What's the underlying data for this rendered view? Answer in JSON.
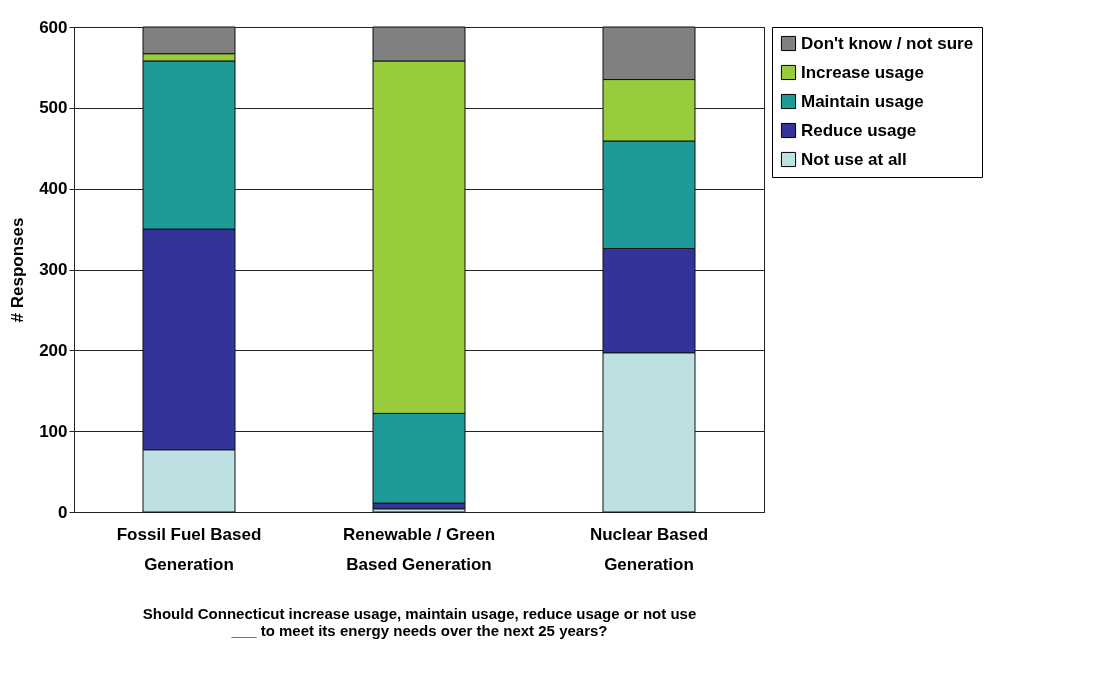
{
  "chart_data": {
    "type": "bar",
    "stacked": true,
    "ylabel": "# Responses",
    "xlabel": "Should Connecticut increase usage, maintain usage, reduce usage or not use\n___ to meet its energy needs over the next 25 years?",
    "categories": [
      "Fossil Fuel Based\nGeneration",
      "Renewable / Green\nBased Generation",
      "Nuclear Based\nGeneration"
    ],
    "series": [
      {
        "name": "Not use at all",
        "color": "#bde1e3",
        "values": [
          77,
          4,
          197
        ]
      },
      {
        "name": "Reduce usage",
        "color": "#333399",
        "values": [
          273,
          7,
          129
        ]
      },
      {
        "name": "Maintain usage",
        "color": "#1e9a98",
        "values": [
          208,
          111,
          133
        ]
      },
      {
        "name": "Increase usage",
        "color": "#99cc3c",
        "values": [
          9,
          436,
          76
        ]
      },
      {
        "name": "Don't know / not sure",
        "color": "#808080",
        "values": [
          33,
          42,
          65
        ]
      }
    ],
    "ylim": [
      0,
      600
    ],
    "yticks": [
      0,
      100,
      200,
      300,
      400,
      500,
      600
    ],
    "grid": "y",
    "legend": "right"
  }
}
